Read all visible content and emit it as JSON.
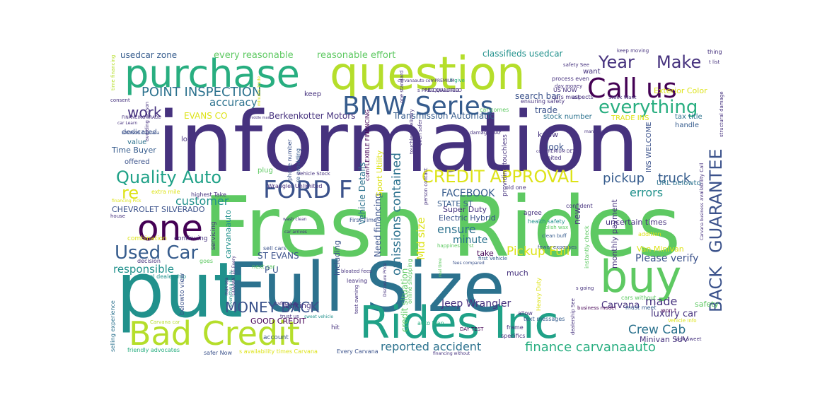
{
  "palette": {
    "purple": "#46327e",
    "indigo": "#3b528b",
    "blue": "#365c8d",
    "steel": "#2c728e",
    "teal": "#21918c",
    "sea": "#1fa187",
    "green": "#28ae80",
    "lime": "#5ec962",
    "yellowgreen": "#b5de2b",
    "yellow": "#dde318",
    "dark": "#440154"
  },
  "words": [
    "information",
    "Fresh Rides",
    "Full Size",
    "put",
    "question",
    "purchase",
    "buy",
    "Rides Inc",
    "Bad Credit",
    "one",
    "Call us",
    "BMW Series",
    "FORD F",
    "Used Car",
    "Quality Auto",
    "CREDIT APPROVAL",
    "GUARANTEE",
    "BACK",
    "everything",
    "Year",
    "Make",
    "work",
    "POINT INSPECTION",
    "MONEY BACK",
    "finance carvanaauto",
    "reported accident",
    "omissions contained",
    "re",
    "Pickup Full",
    "Crew Cab",
    "responsible",
    "accuracy",
    "pickup",
    "truck",
    "customer",
    "Jeep Wrangler",
    "FACEBOOK",
    "ensure",
    "errors",
    "Mid size",
    "made",
    "Please verify",
    "minute",
    "luxury car",
    "Carvana",
    "Need financing",
    "Vehicle Details",
    "credit situation",
    "Berkenkotter Motors",
    "Transmission Automatic",
    "EVANS CO",
    "every reasonable",
    "reasonable effort",
    "usedcar zone",
    "classifieds usedcar",
    "Exterior Color",
    "search bar",
    "trade",
    "look",
    "CHEVROLET SILVERADO",
    "ST EVANS",
    "STATE ST",
    "Super Duty",
    "Electric Hybrid",
    "uncertain times",
    "monthly payment",
    "Van Minivan",
    "Minivan SUV",
    "GOOD CREDIT",
    "P U",
    "Time Buyer",
    "carvanaauto",
    "including",
    "looking",
    "much",
    "take",
    "safety",
    "know",
    "value",
    "low",
    "dedicated",
    "offered",
    "keep",
    "stock number",
    "tax title",
    "TRADE INS",
    "INS WELCOME",
    "URL belowto",
    "handle",
    "new",
    "Sport Utility",
    "re providing",
    "phone number",
    "comFLEXIBLE FINANCING",
    "First Time",
    "sell cars",
    "servicing",
    "continuing",
    "combination",
    "decision",
    "local dealership",
    "next car",
    "leaving",
    "belowto view",
    "safer Now",
    "friendly advocates",
    "selling experience",
    "account",
    "hit",
    "auto loan",
    "online shopping",
    "Heavy Duty",
    "instantly check",
    "fewer expenses",
    "s going",
    "business model",
    "cars without",
    "must meet",
    "won t",
    "Vehicle Info",
    "look sweet",
    "text messages",
    "allow",
    "frame",
    "specifics",
    "DAY TEST",
    "dealership See",
    "Every Carvana",
    "s availability times Carvana",
    "financing without",
    "s PRE QUALIFIED",
    "plug",
    "extra mile",
    "highest Take",
    "Wrangler Unlimited",
    "house",
    "financing Pick",
    "goes",
    "Carvana car",
    "polish wax",
    "clean buff",
    "agree",
    "confident",
    "health safety",
    "old one",
    "providing touchless",
    "limited",
    "damage DAY",
    "comPREMIUM DETAIL",
    "car comes",
    "ensuring safety",
    "day money",
    "US NOW",
    "cars must",
    "process even",
    "safety See",
    "keep moving",
    "thing",
    "t list",
    "want",
    "aspects",
    "Stock Want",
    "man Need",
    "structural damage",
    "availability Call",
    "addition",
    "Carvana business",
    "first Vehicle",
    "fees compared",
    "happiness first",
    "Disclosure Price",
    "bloated fees",
    "test owning",
    "person contact",
    "even safer",
    "touchless delivery",
    "one standard",
    "ll give",
    "carvanaauto comPREMIUM",
    "PRE QUALIFIED",
    "time financing",
    "consent",
    "FINANCING TRADE",
    "SAVINGS Carvana",
    "car Learn",
    "avoiding person",
    "middle man",
    "minutes trade",
    "safer way",
    "trust us",
    "wash clean",
    "car arrives",
    "GUARANTEE Every",
    "everything Every",
    "sweet vehicle",
    "real time",
    "Vehicle Stock",
    "max sea"
  ]
}
